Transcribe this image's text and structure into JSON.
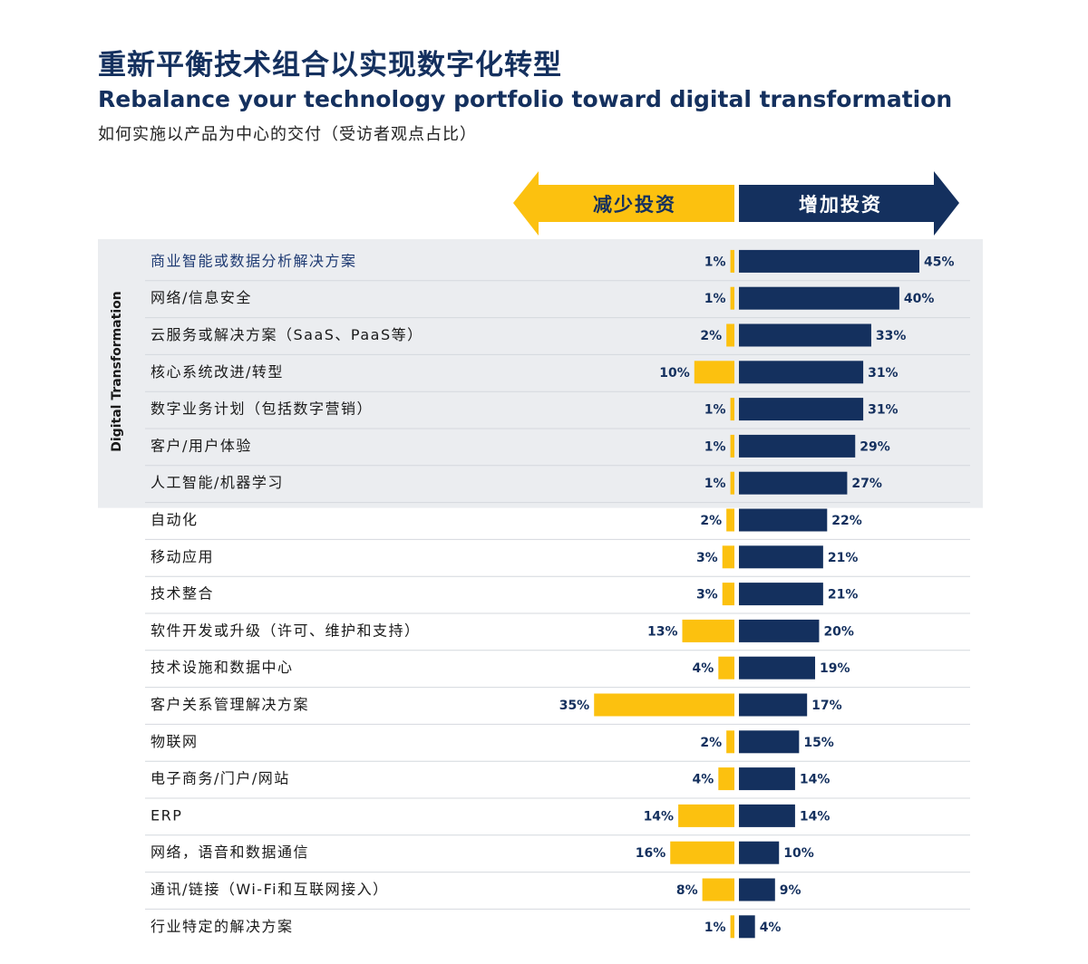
{
  "title_zh": "重新平衡技术组合以实现数字化转型",
  "title_en": "Rebalance your technology portfolio toward digital transformation",
  "subtitle": "如何实施以产品为中心的交付（受访者观点占比）",
  "colors": {
    "navy": "#14305e",
    "yellow": "#fcc10f",
    "band": "#ebedf0",
    "divider": "#d4d8de"
  },
  "chart_data": {
    "type": "bar",
    "title": "重新平衡技术组合以实现数字化转型",
    "legend": {
      "decrease": "减少投资",
      "increase": "增加投资"
    },
    "group_label": "Digital Transformation",
    "highlight_count": 7,
    "xlim": [
      0,
      45
    ],
    "categories": [
      "商业智能或数据分析解决方案",
      "网络/信息安全",
      "云服务或解决方案（SaaS、PaaS等）",
      "核心系统改进/转型",
      "数字业务计划（包括数字营销）",
      "客户/用户体验",
      "人工智能/机器学习",
      "自动化",
      "移动应用",
      "技术整合",
      "软件开发或升级（许可、维护和支持）",
      "技术设施和数据中心",
      "客户关系管理解决方案",
      "物联网",
      "电子商务/门户/网站",
      "ERP",
      "网络，语音和数据通信",
      "通讯/链接（Wi-Fi和互联网接入）",
      "行业特定的解决方案"
    ],
    "series": [
      {
        "name": "减少投资",
        "values": [
          1,
          1,
          2,
          10,
          1,
          1,
          1,
          2,
          3,
          3,
          13,
          4,
          35,
          2,
          4,
          14,
          16,
          8,
          1
        ]
      },
      {
        "name": "增加投资",
        "values": [
          45,
          40,
          33,
          31,
          31,
          29,
          27,
          22,
          21,
          21,
          20,
          19,
          17,
          15,
          14,
          14,
          10,
          9,
          4
        ]
      }
    ],
    "value_format": "{v}%"
  }
}
